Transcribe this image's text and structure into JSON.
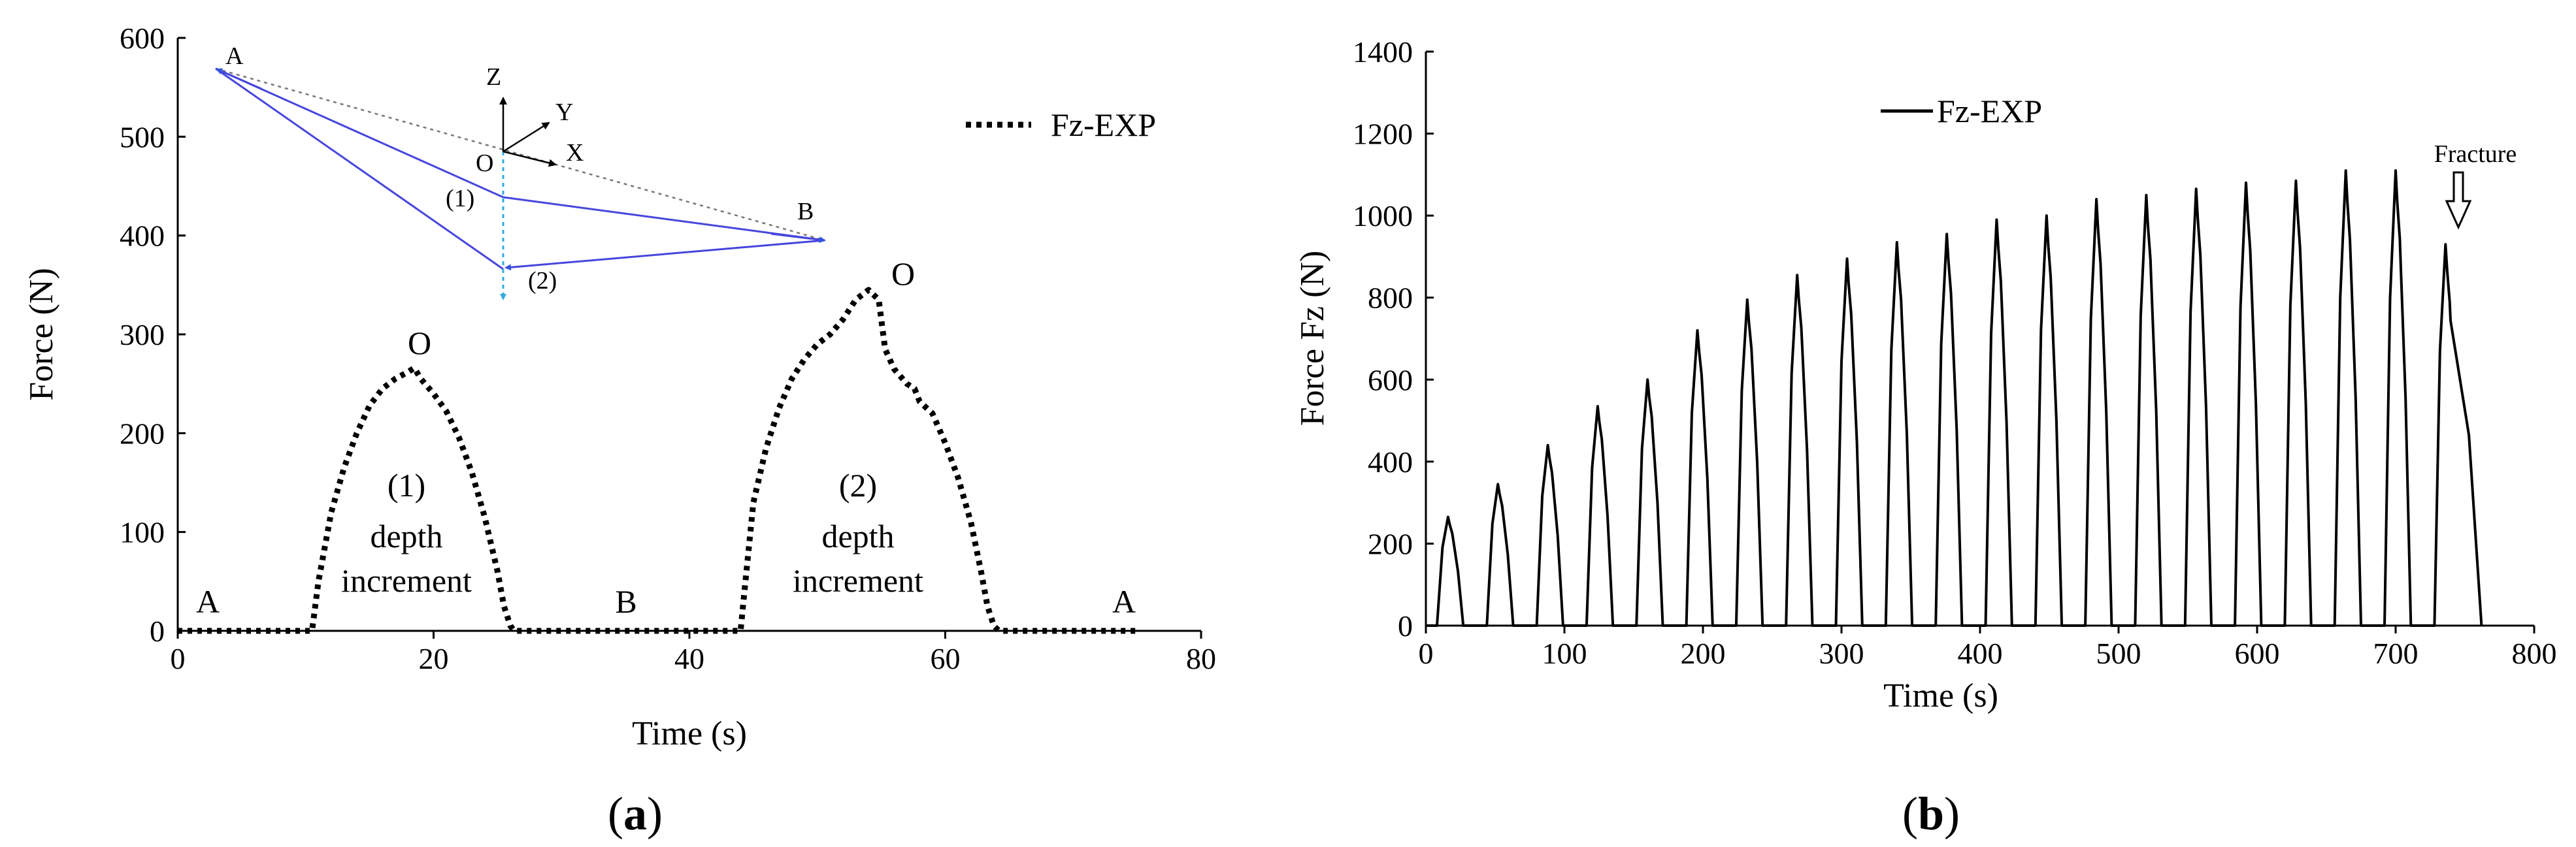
{
  "chart_data": [
    {
      "panel": "(a)",
      "panel_letter": "a",
      "type": "line",
      "xlabel": "Time (s)",
      "ylabel": "Force (N)",
      "xlim": [
        0,
        80
      ],
      "ylim": [
        0,
        600
      ],
      "xticks": [
        0,
        20,
        40,
        60,
        80
      ],
      "yticks": [
        0,
        100,
        200,
        300,
        400,
        500,
        600
      ],
      "legend": "Fz-EXP",
      "series": [
        {
          "name": "Fz-EXP",
          "style": "dotted",
          "color": "#000000",
          "x": [
            0,
            10.5,
            11,
            12,
            13,
            14,
            15,
            16,
            17,
            18,
            18.5,
            19,
            20,
            21,
            22,
            23,
            24,
            25,
            25.5,
            26,
            26.3,
            44,
            44.3,
            45,
            46,
            47,
            48,
            49,
            50,
            51,
            52,
            53,
            54,
            54.8,
            55.3,
            56,
            57,
            57.6,
            58,
            59,
            60,
            61,
            62,
            62.8,
            63.3,
            63.8,
            64.2,
            75
          ],
          "y": [
            0,
            0,
            50,
            120,
            165,
            200,
            228,
            245,
            255,
            262,
            266,
            255,
            240,
            222,
            195,
            160,
            115,
            60,
            25,
            5,
            0,
            0,
            40,
            130,
            185,
            225,
            255,
            275,
            290,
            300,
            315,
            335,
            345,
            335,
            285,
            265,
            250,
            245,
            232,
            220,
            190,
            155,
            110,
            60,
            25,
            5,
            0,
            0
          ]
        }
      ],
      "annotations": {
        "start": "A",
        "mid": "B",
        "end": "A",
        "peak1": "O",
        "peak2": "O",
        "seg1_num": "(1)",
        "seg1_l1": "depth",
        "seg1_l2": "increment",
        "seg2_num": "(2)",
        "seg2_l1": "depth",
        "seg2_l2": "increment"
      },
      "inset": {
        "A": "A",
        "B": "B",
        "O": "O",
        "Z": "Z",
        "Y": "Y",
        "X": "X",
        "p1": "(1)",
        "p2": "(2)"
      }
    },
    {
      "panel": "(b)",
      "panel_letter": "b",
      "type": "line",
      "xlabel": "Time (s)",
      "ylabel": "Force Fz (N)",
      "xlim": [
        0,
        800
      ],
      "ylim": [
        0,
        1400
      ],
      "xticks": [
        0,
        100,
        200,
        300,
        400,
        500,
        600,
        700,
        800
      ],
      "yticks": [
        0,
        200,
        400,
        600,
        800,
        1000,
        1200,
        1400
      ],
      "legend": "Fz-EXP",
      "annotation": "Fracture",
      "cycle_starts": [
        8,
        44,
        80,
        116,
        152,
        188,
        224,
        260,
        296,
        332,
        368,
        404,
        440,
        476,
        512,
        548,
        584,
        620,
        656,
        692,
        728
      ],
      "cycle_peaks": [
        265,
        345,
        440,
        535,
        600,
        720,
        795,
        855,
        895,
        935,
        955,
        990,
        1000,
        1040,
        1050,
        1065,
        1080,
        1085,
        1110,
        1110,
        930
      ],
      "end_time": 762,
      "series": [
        {
          "name": "Fz-EXP",
          "style": "solid",
          "color": "#000000"
        }
      ]
    }
  ]
}
